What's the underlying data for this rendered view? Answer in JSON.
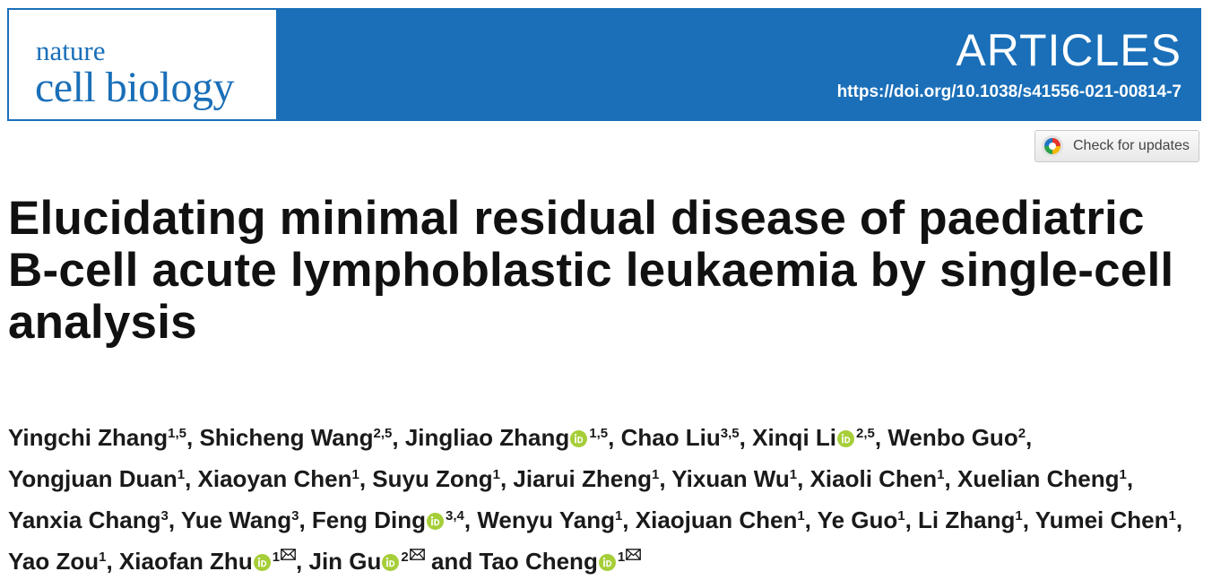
{
  "journal": {
    "name_line1": "nature",
    "name_line2": "cell biology",
    "section": "ARTICLES",
    "doi": "https://doi.org/10.1038/s41556-021-00814-7",
    "brand_color": "#1a6fb8"
  },
  "check_updates": {
    "label": "Check for updates",
    "icon": "check-for-updates-icon"
  },
  "article": {
    "title": "Elucidating minimal residual disease of paediatric B-cell acute lymphoblastic leukaemia by single-cell analysis"
  },
  "authors": [
    {
      "name": "Yingchi Zhang",
      "aff": "1,5",
      "orcid": false,
      "corresponding": false
    },
    {
      "name": "Shicheng Wang",
      "aff": "2,5",
      "orcid": false,
      "corresponding": false
    },
    {
      "name": "Jingliao Zhang",
      "aff": "1,5",
      "orcid": true,
      "corresponding": false
    },
    {
      "name": "Chao Liu",
      "aff": "3,5",
      "orcid": false,
      "corresponding": false
    },
    {
      "name": "Xinqi Li",
      "aff": "2,5",
      "orcid": true,
      "corresponding": false
    },
    {
      "name": "Wenbo Guo",
      "aff": "2",
      "orcid": false,
      "corresponding": false
    },
    {
      "name": "Yongjuan Duan",
      "aff": "1",
      "orcid": false,
      "corresponding": false
    },
    {
      "name": "Xiaoyan Chen",
      "aff": "1",
      "orcid": false,
      "corresponding": false
    },
    {
      "name": "Suyu Zong",
      "aff": "1",
      "orcid": false,
      "corresponding": false
    },
    {
      "name": "Jiarui Zheng",
      "aff": "1",
      "orcid": false,
      "corresponding": false
    },
    {
      "name": "Yixuan Wu",
      "aff": "1",
      "orcid": false,
      "corresponding": false
    },
    {
      "name": "Xiaoli Chen",
      "aff": "1",
      "orcid": false,
      "corresponding": false
    },
    {
      "name": "Xuelian Cheng",
      "aff": "1",
      "orcid": false,
      "corresponding": false
    },
    {
      "name": "Yanxia Chang",
      "aff": "3",
      "orcid": false,
      "corresponding": false
    },
    {
      "name": "Yue Wang",
      "aff": "3",
      "orcid": false,
      "corresponding": false
    },
    {
      "name": "Feng Ding",
      "aff": "3,4",
      "orcid": true,
      "corresponding": false
    },
    {
      "name": "Wenyu Yang",
      "aff": "1",
      "orcid": false,
      "corresponding": false
    },
    {
      "name": "Xiaojuan Chen",
      "aff": "1",
      "orcid": false,
      "corresponding": false
    },
    {
      "name": "Ye Guo",
      "aff": "1",
      "orcid": false,
      "corresponding": false
    },
    {
      "name": "Li Zhang",
      "aff": "1",
      "orcid": false,
      "corresponding": false
    },
    {
      "name": "Yumei Chen",
      "aff": "1",
      "orcid": false,
      "corresponding": false
    },
    {
      "name": "Yao Zou",
      "aff": "1",
      "orcid": false,
      "corresponding": false
    },
    {
      "name": "Xiaofan Zhu",
      "aff": "1",
      "orcid": true,
      "corresponding": true
    },
    {
      "name": "Jin Gu",
      "aff": "2",
      "orcid": true,
      "corresponding": true
    },
    {
      "name": "Tao Cheng",
      "aff": "1",
      "orcid": true,
      "corresponding": true
    }
  ],
  "author_separator": ", ",
  "author_final_joiner": " and ",
  "icons": {
    "orcid": "orcid-icon",
    "corresponding": "envelope-icon",
    "orcid_color": "#a6ce39"
  }
}
